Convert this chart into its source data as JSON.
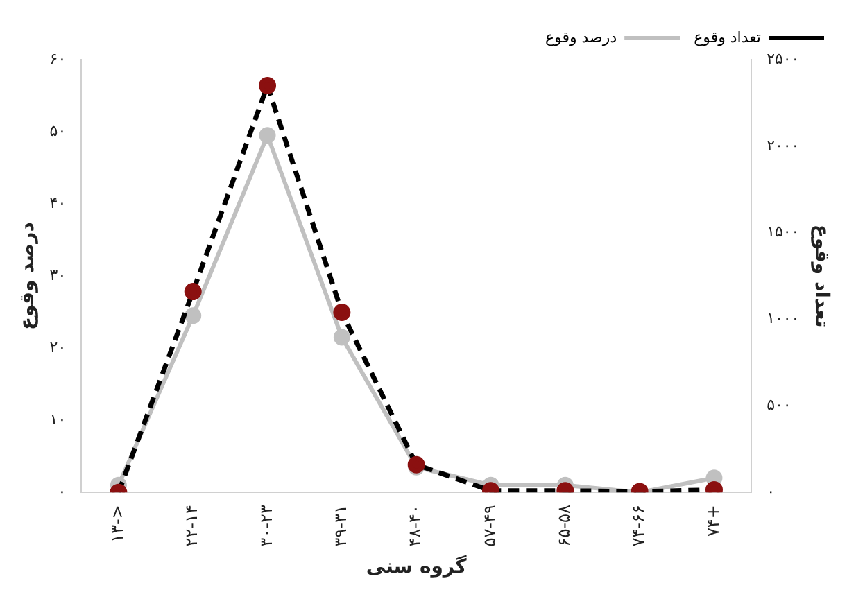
{
  "chart_data": {
    "type": "line",
    "xlabel": "گروه سنی",
    "ylabel": "درصد وقوع",
    "y2label": "تعداد وقوع",
    "categories": [
      "۱۳->",
      "۲۲-۱۴",
      "۳۰-۲۳",
      "۳۹-۳۱",
      "۴۸-۴۰",
      "۵۷-۴۹",
      "۶۵-۵۸",
      "۷۴-۶۶",
      "۷۴+"
    ],
    "series": [
      {
        "name": "تعداد وقوع",
        "color": "#8b1010",
        "axis": "y2",
        "line_style": "dashed",
        "values": [
          0,
          1160,
          2350,
          1040,
          160,
          10,
          10,
          5,
          15
        ]
      },
      {
        "name": "درصد وقوع",
        "color": "#c0c0c0",
        "axis": "y",
        "line_style": "solid",
        "values": [
          1,
          24.5,
          49.5,
          21.5,
          3.5,
          1,
          1,
          0,
          2
        ]
      }
    ],
    "ylim": [
      0,
      60
    ],
    "yticks": [
      {
        "value": 0,
        "label": "۰"
      },
      {
        "value": 10,
        "label": "۱۰"
      },
      {
        "value": 20,
        "label": "۲۰"
      },
      {
        "value": 30,
        "label": "۳۰"
      },
      {
        "value": 40,
        "label": "۴۰"
      },
      {
        "value": 50,
        "label": "۵۰"
      },
      {
        "value": 60,
        "label": "۶۰"
      }
    ],
    "y2lim": [
      0,
      2500
    ],
    "y2ticks": [
      {
        "value": 0,
        "label": "۰"
      },
      {
        "value": 500,
        "label": "۵۰۰"
      },
      {
        "value": 1000,
        "label": "۱۰۰۰"
      },
      {
        "value": 1500,
        "label": "۱۵۰۰"
      },
      {
        "value": 2000,
        "label": "۲۰۰۰"
      },
      {
        "value": 2500,
        "label": "۲۵۰۰"
      }
    ],
    "grid": false,
    "legend": "top right",
    "marker": "circle"
  }
}
